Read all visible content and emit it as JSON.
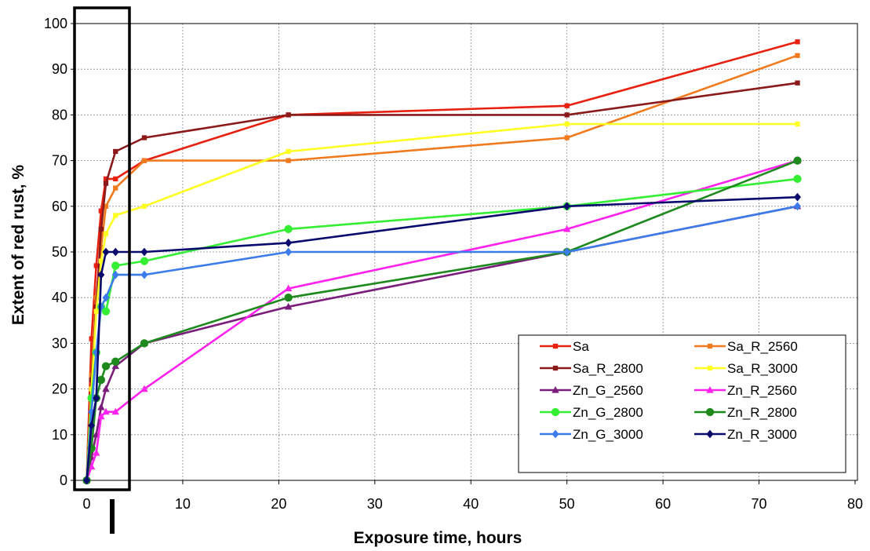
{
  "chart_data": {
    "type": "line",
    "title": "",
    "xlabel": "Exposure time, hours",
    "ylabel": "Extent of red rust, %",
    "xlim": [
      0,
      80
    ],
    "ylim": [
      0,
      100
    ],
    "xticks": [
      "0",
      "10",
      "20",
      "30",
      "40",
      "50",
      "60",
      "70",
      "80"
    ],
    "yticks": [
      "0",
      "10",
      "20",
      "30",
      "40",
      "50",
      "60",
      "70",
      "80",
      "90",
      "100"
    ],
    "grid": true,
    "legend_position": "lower-right",
    "series": [
      {
        "name": "Sa",
        "color": "#e8200f",
        "marker": "square",
        "x": [
          0,
          0.5,
          1,
          1.5,
          2,
          3,
          6,
          21,
          50,
          74
        ],
        "y": [
          0,
          31,
          47,
          59,
          66,
          66,
          70,
          80,
          82,
          96
        ]
      },
      {
        "name": "Sa_R_2560",
        "color": "#f07a1e",
        "marker": "square",
        "x": [
          0,
          0.5,
          1,
          1.5,
          2,
          3,
          6,
          21,
          50,
          74
        ],
        "y": [
          0,
          23,
          40,
          51,
          60,
          64,
          70,
          70,
          75,
          93
        ]
      },
      {
        "name": "Sa_R_2800",
        "color": "#8b1a1a",
        "marker": "square",
        "x": [
          0,
          0.5,
          1,
          1.5,
          2,
          3,
          6,
          21,
          50,
          74
        ],
        "y": [
          0,
          22,
          38,
          55,
          65,
          72,
          75,
          80,
          80,
          87
        ]
      },
      {
        "name": "Sa_R_3000",
        "color": "#ffff22",
        "marker": "square",
        "x": [
          0,
          0.5,
          1,
          1.5,
          2,
          3,
          6,
          21,
          50,
          74
        ],
        "y": [
          0,
          20,
          37,
          48,
          54,
          58,
          60,
          72,
          78,
          78
        ]
      },
      {
        "name": "Zn_G_2560",
        "color": "#7b1e7b",
        "marker": "triangle",
        "x": [
          0,
          0.5,
          1,
          1.5,
          2,
          3,
          6,
          21,
          50,
          74
        ],
        "y": [
          0,
          5,
          10,
          16,
          20,
          25,
          30,
          38,
          50,
          60
        ]
      },
      {
        "name": "Zn_R_2560",
        "color": "#ff22ee",
        "marker": "triangle",
        "x": [
          0,
          0.5,
          1,
          1.5,
          2,
          3,
          6,
          21,
          50,
          74
        ],
        "y": [
          0,
          3,
          6,
          14,
          15,
          15,
          20,
          42,
          55,
          70
        ]
      },
      {
        "name": "Zn_G_2800",
        "color": "#33ee33",
        "marker": "circle",
        "x": [
          0,
          0.5,
          1,
          1.5,
          2,
          3,
          6,
          21,
          50,
          74
        ],
        "y": [
          0,
          18,
          28,
          38,
          37,
          47,
          48,
          55,
          60,
          66
        ]
      },
      {
        "name": "Zn_R_2800",
        "color": "#1e8a1e",
        "marker": "circle",
        "x": [
          0,
          0.5,
          1,
          1.5,
          2,
          3,
          6,
          21,
          50,
          74
        ],
        "y": [
          0,
          7,
          18,
          22,
          25,
          26,
          30,
          40,
          50,
          70
        ]
      },
      {
        "name": "Zn_G_3000",
        "color": "#3b7bea",
        "marker": "diamond",
        "x": [
          0,
          0.5,
          1,
          1.5,
          2,
          3,
          6,
          21,
          50,
          74
        ],
        "y": [
          0,
          15,
          28,
          38,
          40,
          45,
          45,
          50,
          50,
          60
        ]
      },
      {
        "name": "Zn_R_3000",
        "color": "#0a0a6e",
        "marker": "diamond",
        "x": [
          0,
          0.5,
          1,
          1.5,
          2,
          3,
          6,
          21,
          50,
          74
        ],
        "y": [
          0,
          12,
          18,
          45,
          50,
          50,
          50,
          52,
          60,
          62
        ]
      }
    ]
  }
}
